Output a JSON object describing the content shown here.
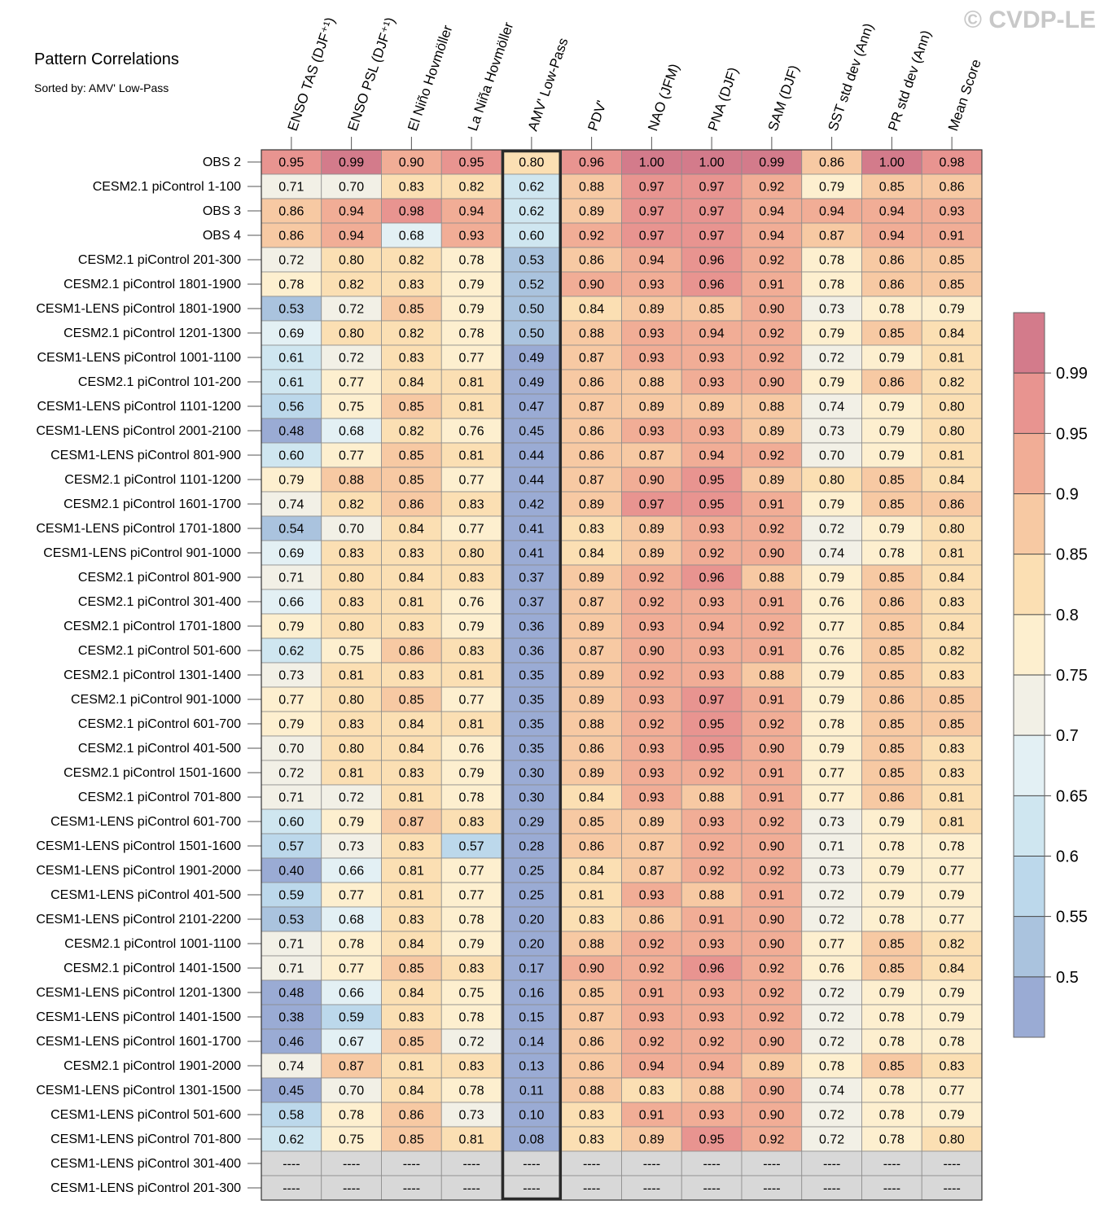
{
  "watermark": "© CVDP-LE",
  "title": "Pattern Correlations",
  "subtitle": "Sorted by: AMV' Low-Pass",
  "chart_data": {
    "type": "heatmap",
    "title": "Pattern Correlations",
    "subtitle": "Sorted by: AMV' Low-Pass",
    "columns": [
      "ENSO TAS (DJF⁺¹)",
      "ENSO PSL (DJF⁺¹)",
      "El Niño Hovmöller",
      "La Niña Hovmöller",
      "AMV' Low-Pass",
      "PDV'",
      "NAO (JFM)",
      "PNA (DJF)",
      "SAM (DJF)",
      "SST std dev (Ann)",
      "PR std dev (Ann)",
      "Mean Score"
    ],
    "highlighted_column": "AMV' Low-Pass",
    "missing_label": "----",
    "rows": [
      {
        "name": "OBS 2",
        "values": [
          0.95,
          0.99,
          0.9,
          0.95,
          0.8,
          0.96,
          1.0,
          1.0,
          0.99,
          0.86,
          1.0,
          0.98
        ]
      },
      {
        "name": "CESM2.1 piControl 1-100",
        "values": [
          0.71,
          0.7,
          0.83,
          0.82,
          0.62,
          0.88,
          0.97,
          0.97,
          0.92,
          0.79,
          0.85,
          0.86
        ]
      },
      {
        "name": "OBS 3",
        "values": [
          0.86,
          0.94,
          0.98,
          0.94,
          0.62,
          0.89,
          0.97,
          0.97,
          0.94,
          0.94,
          0.94,
          0.93
        ]
      },
      {
        "name": "OBS 4",
        "values": [
          0.86,
          0.94,
          0.68,
          0.93,
          0.6,
          0.92,
          0.97,
          0.97,
          0.94,
          0.87,
          0.94,
          0.91
        ]
      },
      {
        "name": "CESM2.1 piControl 201-300",
        "values": [
          0.72,
          0.8,
          0.82,
          0.78,
          0.53,
          0.86,
          0.94,
          0.96,
          0.92,
          0.78,
          0.86,
          0.85
        ]
      },
      {
        "name": "CESM2.1 piControl 1801-1900",
        "values": [
          0.78,
          0.82,
          0.83,
          0.79,
          0.52,
          0.9,
          0.93,
          0.96,
          0.91,
          0.78,
          0.86,
          0.85
        ]
      },
      {
        "name": "CESM1-LENS piControl 1801-1900",
        "values": [
          0.53,
          0.72,
          0.85,
          0.79,
          0.5,
          0.84,
          0.89,
          0.85,
          0.9,
          0.73,
          0.78,
          0.79
        ]
      },
      {
        "name": "CESM2.1 piControl 1201-1300",
        "values": [
          0.69,
          0.8,
          0.82,
          0.78,
          0.5,
          0.88,
          0.93,
          0.94,
          0.92,
          0.79,
          0.85,
          0.84
        ]
      },
      {
        "name": "CESM1-LENS piControl 1001-1100",
        "values": [
          0.61,
          0.72,
          0.83,
          0.77,
          0.49,
          0.87,
          0.93,
          0.93,
          0.92,
          0.72,
          0.79,
          0.81
        ]
      },
      {
        "name": "CESM2.1 piControl 101-200",
        "values": [
          0.61,
          0.77,
          0.84,
          0.81,
          0.49,
          0.86,
          0.88,
          0.93,
          0.9,
          0.79,
          0.86,
          0.82
        ]
      },
      {
        "name": "CESM1-LENS piControl 1101-1200",
        "values": [
          0.56,
          0.75,
          0.85,
          0.81,
          0.47,
          0.87,
          0.89,
          0.89,
          0.88,
          0.74,
          0.79,
          0.8
        ]
      },
      {
        "name": "CESM1-LENS piControl 2001-2100",
        "values": [
          0.48,
          0.68,
          0.82,
          0.76,
          0.45,
          0.86,
          0.93,
          0.93,
          0.89,
          0.73,
          0.79,
          0.8
        ]
      },
      {
        "name": "CESM1-LENS piControl 801-900",
        "values": [
          0.6,
          0.77,
          0.85,
          0.81,
          0.44,
          0.86,
          0.87,
          0.94,
          0.92,
          0.7,
          0.79,
          0.81
        ]
      },
      {
        "name": "CESM2.1 piControl 1101-1200",
        "values": [
          0.79,
          0.88,
          0.85,
          0.77,
          0.44,
          0.87,
          0.9,
          0.95,
          0.89,
          0.8,
          0.85,
          0.84
        ]
      },
      {
        "name": "CESM2.1 piControl 1601-1700",
        "values": [
          0.74,
          0.82,
          0.86,
          0.83,
          0.42,
          0.89,
          0.97,
          0.95,
          0.91,
          0.79,
          0.85,
          0.86
        ]
      },
      {
        "name": "CESM1-LENS piControl 1701-1800",
        "values": [
          0.54,
          0.7,
          0.84,
          0.77,
          0.41,
          0.83,
          0.89,
          0.93,
          0.92,
          0.72,
          0.79,
          0.8
        ]
      },
      {
        "name": "CESM1-LENS piControl 901-1000",
        "values": [
          0.69,
          0.83,
          0.83,
          0.8,
          0.41,
          0.84,
          0.89,
          0.92,
          0.9,
          0.74,
          0.78,
          0.81
        ]
      },
      {
        "name": "CESM2.1 piControl 801-900",
        "values": [
          0.71,
          0.8,
          0.84,
          0.83,
          0.37,
          0.89,
          0.92,
          0.96,
          0.88,
          0.79,
          0.85,
          0.84
        ]
      },
      {
        "name": "CESM2.1 piControl 301-400",
        "values": [
          0.66,
          0.83,
          0.81,
          0.76,
          0.37,
          0.87,
          0.92,
          0.93,
          0.91,
          0.76,
          0.86,
          0.83
        ]
      },
      {
        "name": "CESM2.1 piControl 1701-1800",
        "values": [
          0.79,
          0.8,
          0.83,
          0.79,
          0.36,
          0.89,
          0.93,
          0.94,
          0.92,
          0.77,
          0.85,
          0.84
        ]
      },
      {
        "name": "CESM2.1 piControl 501-600",
        "values": [
          0.62,
          0.75,
          0.86,
          0.83,
          0.36,
          0.87,
          0.9,
          0.93,
          0.91,
          0.76,
          0.85,
          0.82
        ]
      },
      {
        "name": "CESM2.1 piControl 1301-1400",
        "values": [
          0.73,
          0.81,
          0.83,
          0.81,
          0.35,
          0.89,
          0.92,
          0.93,
          0.88,
          0.79,
          0.85,
          0.83
        ]
      },
      {
        "name": "CESM2.1 piControl 901-1000",
        "values": [
          0.77,
          0.8,
          0.85,
          0.77,
          0.35,
          0.89,
          0.93,
          0.97,
          0.91,
          0.79,
          0.86,
          0.85
        ]
      },
      {
        "name": "CESM2.1 piControl 601-700",
        "values": [
          0.79,
          0.83,
          0.84,
          0.81,
          0.35,
          0.88,
          0.92,
          0.95,
          0.92,
          0.78,
          0.85,
          0.85
        ]
      },
      {
        "name": "CESM2.1 piControl 401-500",
        "values": [
          0.7,
          0.8,
          0.84,
          0.76,
          0.35,
          0.86,
          0.93,
          0.95,
          0.9,
          0.79,
          0.85,
          0.83
        ]
      },
      {
        "name": "CESM2.1 piControl 1501-1600",
        "values": [
          0.72,
          0.81,
          0.83,
          0.79,
          0.3,
          0.89,
          0.93,
          0.92,
          0.91,
          0.77,
          0.85,
          0.83
        ]
      },
      {
        "name": "CESM2.1 piControl 701-800",
        "values": [
          0.71,
          0.72,
          0.81,
          0.78,
          0.3,
          0.84,
          0.93,
          0.88,
          0.91,
          0.77,
          0.86,
          0.81
        ]
      },
      {
        "name": "CESM1-LENS piControl 601-700",
        "values": [
          0.6,
          0.79,
          0.87,
          0.83,
          0.29,
          0.85,
          0.89,
          0.93,
          0.92,
          0.73,
          0.79,
          0.81
        ]
      },
      {
        "name": "CESM1-LENS piControl 1501-1600",
        "values": [
          0.57,
          0.73,
          0.83,
          0.57,
          0.28,
          0.86,
          0.87,
          0.92,
          0.9,
          0.71,
          0.78,
          0.78
        ]
      },
      {
        "name": "CESM1-LENS piControl 1901-2000",
        "values": [
          0.4,
          0.66,
          0.81,
          0.77,
          0.25,
          0.84,
          0.87,
          0.92,
          0.92,
          0.73,
          0.79,
          0.77
        ]
      },
      {
        "name": "CESM1-LENS piControl 401-500",
        "values": [
          0.59,
          0.77,
          0.81,
          0.77,
          0.25,
          0.81,
          0.93,
          0.88,
          0.91,
          0.72,
          0.79,
          0.79
        ]
      },
      {
        "name": "CESM1-LENS piControl 2101-2200",
        "values": [
          0.53,
          0.68,
          0.83,
          0.78,
          0.2,
          0.83,
          0.86,
          0.91,
          0.9,
          0.72,
          0.78,
          0.77
        ]
      },
      {
        "name": "CESM2.1 piControl 1001-1100",
        "values": [
          0.71,
          0.78,
          0.84,
          0.79,
          0.2,
          0.88,
          0.92,
          0.93,
          0.9,
          0.77,
          0.85,
          0.82
        ]
      },
      {
        "name": "CESM2.1 piControl 1401-1500",
        "values": [
          0.71,
          0.77,
          0.85,
          0.83,
          0.17,
          0.9,
          0.92,
          0.96,
          0.92,
          0.76,
          0.85,
          0.84
        ]
      },
      {
        "name": "CESM1-LENS piControl 1201-1300",
        "values": [
          0.48,
          0.66,
          0.84,
          0.75,
          0.16,
          0.85,
          0.91,
          0.93,
          0.92,
          0.72,
          0.79,
          0.79
        ]
      },
      {
        "name": "CESM1-LENS piControl 1401-1500",
        "values": [
          0.38,
          0.59,
          0.83,
          0.78,
          0.15,
          0.87,
          0.93,
          0.93,
          0.92,
          0.72,
          0.78,
          0.79
        ]
      },
      {
        "name": "CESM1-LENS piControl 1601-1700",
        "values": [
          0.46,
          0.67,
          0.85,
          0.72,
          0.14,
          0.86,
          0.92,
          0.92,
          0.9,
          0.72,
          0.78,
          0.78
        ]
      },
      {
        "name": "CESM2.1 piControl 1901-2000",
        "values": [
          0.74,
          0.87,
          0.81,
          0.83,
          0.13,
          0.86,
          0.94,
          0.94,
          0.89,
          0.78,
          0.85,
          0.83
        ]
      },
      {
        "name": "CESM1-LENS piControl 1301-1500",
        "values": [
          0.45,
          0.7,
          0.84,
          0.78,
          0.11,
          0.88,
          0.83,
          0.88,
          0.9,
          0.74,
          0.78,
          0.77
        ]
      },
      {
        "name": "CESM1-LENS piControl 501-600",
        "values": [
          0.58,
          0.78,
          0.86,
          0.73,
          0.1,
          0.83,
          0.91,
          0.93,
          0.9,
          0.72,
          0.78,
          0.79
        ]
      },
      {
        "name": "CESM1-LENS piControl 701-800",
        "values": [
          0.62,
          0.75,
          0.85,
          0.81,
          0.08,
          0.83,
          0.89,
          0.95,
          0.92,
          0.72,
          0.78,
          0.8
        ]
      },
      {
        "name": "CESM1-LENS piControl 301-400",
        "values": [
          null,
          null,
          null,
          null,
          null,
          null,
          null,
          null,
          null,
          null,
          null,
          null
        ]
      },
      {
        "name": "CESM1-LENS piControl 201-300",
        "values": [
          null,
          null,
          null,
          null,
          null,
          null,
          null,
          null,
          null,
          null,
          null,
          null
        ]
      }
    ],
    "colorbar": {
      "levels": [
        0.5,
        0.55,
        0.6,
        0.65,
        0.7,
        0.75,
        0.8,
        0.85,
        0.9,
        0.95,
        0.99
      ],
      "labels": [
        "0.5",
        "0.55",
        "0.6",
        "0.65",
        "0.7",
        "0.75",
        "0.8",
        "0.85",
        "0.9",
        "0.95",
        "0.99"
      ],
      "colors": [
        "#9aabd4",
        "#aac3de",
        "#bcd8eb",
        "#cfe6f0",
        "#e3f0f4",
        "#f2f0e6",
        "#fdefcf",
        "#fbdfb3",
        "#f7c9a3",
        "#f1ad96",
        "#e89490",
        "#d37b8b"
      ],
      "missing_color": "#d8d8d8"
    }
  }
}
